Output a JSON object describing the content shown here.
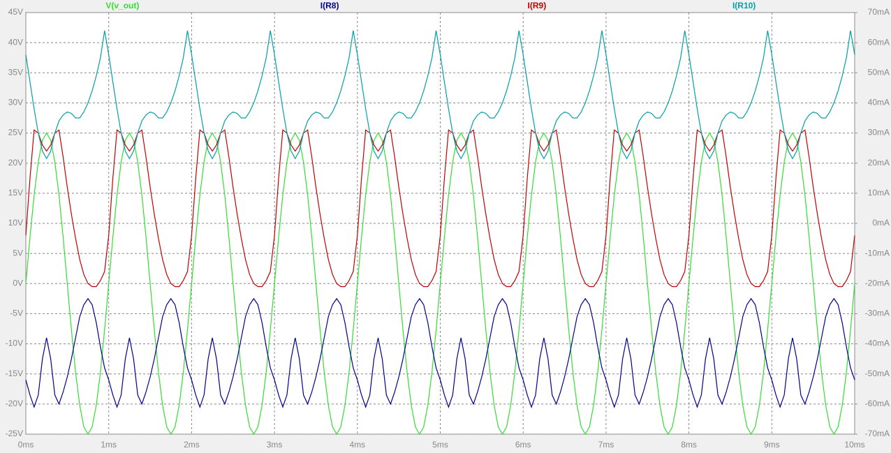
{
  "chart_data": {
    "type": "line",
    "x": [
      0,
      0.05,
      0.1,
      0.15,
      0.2,
      0.25,
      0.3,
      0.35,
      0.4,
      0.45,
      0.5,
      0.55,
      0.6,
      0.65,
      0.7,
      0.75,
      0.8,
      0.85,
      0.9,
      0.95,
      1,
      1.05,
      1.1,
      1.15,
      1.2,
      1.25,
      1.3,
      1.35,
      1.4,
      1.45,
      1.5,
      1.55,
      1.6,
      1.65,
      1.7,
      1.75,
      1.8,
      1.85,
      1.9,
      1.95,
      2,
      2.05,
      2.1,
      2.15,
      2.2,
      2.25,
      2.3,
      2.35,
      2.4,
      2.45,
      2.5,
      2.55,
      2.6,
      2.65,
      2.7,
      2.75,
      2.8,
      2.85,
      2.9,
      2.95,
      3,
      3.05,
      3.1,
      3.15,
      3.2,
      3.25,
      3.3,
      3.35,
      3.4,
      3.45,
      3.5,
      3.55,
      3.6,
      3.65,
      3.7,
      3.75,
      3.8,
      3.85,
      3.9,
      3.95,
      4,
      4.05,
      4.1,
      4.15,
      4.2,
      4.25,
      4.3,
      4.35,
      4.4,
      4.45,
      4.5,
      4.55,
      4.6,
      4.65,
      4.7,
      4.75,
      4.8,
      4.85,
      4.9,
      4.95,
      5,
      5.05,
      5.1,
      5.15,
      5.2,
      5.25,
      5.3,
      5.35,
      5.4,
      5.45,
      5.5,
      5.55,
      5.6,
      5.65,
      5.7,
      5.75,
      5.8,
      5.85,
      5.9,
      5.95,
      6,
      6.05,
      6.1,
      6.15,
      6.2,
      6.25,
      6.3,
      6.35,
      6.4,
      6.45,
      6.5,
      6.55,
      6.6,
      6.65,
      6.7,
      6.75,
      6.8,
      6.85,
      6.9,
      6.95,
      7,
      7.05,
      7.1,
      7.15,
      7.2,
      7.25,
      7.3,
      7.35,
      7.4,
      7.45,
      7.5,
      7.55,
      7.6,
      7.65,
      7.7,
      7.75,
      7.8,
      7.85,
      7.9,
      7.95,
      8,
      8.05,
      8.1,
      8.15,
      8.2,
      8.25,
      8.3,
      8.35,
      8.4,
      8.45,
      8.5,
      8.55,
      8.6,
      8.65,
      8.7,
      8.75,
      8.8,
      8.85,
      8.9,
      8.95,
      9,
      9.05,
      9.1,
      9.15,
      9.2,
      9.25,
      9.3,
      9.35,
      9.4,
      9.45,
      9.5,
      9.55,
      9.6,
      9.65,
      9.7,
      9.75,
      9.8,
      9.85,
      9.9,
      9.95,
      10
    ],
    "series": [
      {
        "name": "V(v_out)",
        "color": "#33dd33",
        "values": [
          0,
          7.7,
          14.7,
          20.2,
          23.8,
          25,
          23.8,
          20.2,
          14.7,
          7.7,
          0,
          -7.7,
          -14.7,
          -20.2,
          -23.8,
          -25,
          -23.8,
          -20.2,
          -14.7,
          -7.7,
          0,
          7.7,
          14.7,
          20.2,
          23.8,
          25,
          23.8,
          20.2,
          14.7,
          7.7,
          0,
          -7.7,
          -14.7,
          -20.2,
          -23.8,
          -25,
          -23.8,
          -20.2,
          -14.7,
          -7.7,
          0,
          7.7,
          14.7,
          20.2,
          23.8,
          25,
          23.8,
          20.2,
          14.7,
          7.7,
          0,
          -7.7,
          -14.7,
          -20.2,
          -23.8,
          -25,
          -23.8,
          -20.2,
          -14.7,
          -7.7,
          0,
          7.7,
          14.7,
          20.2,
          23.8,
          25,
          23.8,
          20.2,
          14.7,
          7.7,
          0,
          -7.7,
          -14.7,
          -20.2,
          -23.8,
          -25,
          -23.8,
          -20.2,
          -14.7,
          -7.7,
          0,
          7.7,
          14.7,
          20.2,
          23.8,
          25,
          23.8,
          20.2,
          14.7,
          7.7,
          0,
          -7.7,
          -14.7,
          -20.2,
          -23.8,
          -25,
          -23.8,
          -20.2,
          -14.7,
          -7.7,
          0,
          7.7,
          14.7,
          20.2,
          23.8,
          25,
          23.8,
          20.2,
          14.7,
          7.7,
          0,
          -7.7,
          -14.7,
          -20.2,
          -23.8,
          -25,
          -23.8,
          -20.2,
          -14.7,
          -7.7,
          0,
          7.7,
          14.7,
          20.2,
          23.8,
          25,
          23.8,
          20.2,
          14.7,
          7.7,
          0,
          -7.7,
          -14.7,
          -20.2,
          -23.8,
          -25,
          -23.8,
          -20.2,
          -14.7,
          -7.7,
          0,
          7.7,
          14.7,
          20.2,
          23.8,
          25,
          23.8,
          20.2,
          14.7,
          7.7,
          0,
          -7.7,
          -14.7,
          -20.2,
          -23.8,
          -25,
          -23.8,
          -20.2,
          -14.7,
          -7.7,
          0,
          7.7,
          14.7,
          20.2,
          23.8,
          25,
          23.8,
          20.2,
          14.7,
          7.7,
          0,
          -7.7,
          -14.7,
          -20.2,
          -23.8,
          -25,
          -23.8,
          -20.2,
          -14.7,
          -7.7,
          0,
          7.7,
          14.7,
          20.2,
          23.8,
          25,
          23.8,
          20.2,
          14.7,
          7.7,
          0,
          -7.7,
          -14.7,
          -20.2,
          -23.8,
          -25,
          -23.8,
          -20.2,
          -14.7,
          -7.7,
          0
        ]
      },
      {
        "name": "I(R8)",
        "color": "#000090",
        "axis": "y2",
        "values": [
          -52,
          -57,
          -61,
          -57,
          -45,
          -38,
          -45,
          -57,
          -60,
          -56,
          -51,
          -45,
          -38,
          -31,
          -27,
          -25,
          -27,
          -33,
          -41,
          -48,
          -52,
          -57,
          -61,
          -57,
          -45,
          -38,
          -45,
          -57,
          -60,
          -56,
          -51,
          -45,
          -38,
          -31,
          -27,
          -25,
          -27,
          -33,
          -41,
          -48,
          -52,
          -57,
          -61,
          -57,
          -45,
          -38,
          -45,
          -57,
          -60,
          -56,
          -51,
          -45,
          -38,
          -31,
          -27,
          -25,
          -27,
          -33,
          -41,
          -48,
          -52,
          -57,
          -61,
          -57,
          -45,
          -38,
          -45,
          -57,
          -60,
          -56,
          -51,
          -45,
          -38,
          -31,
          -27,
          -25,
          -27,
          -33,
          -41,
          -48,
          -52,
          -57,
          -61,
          -57,
          -45,
          -38,
          -45,
          -57,
          -60,
          -56,
          -51,
          -45,
          -38,
          -31,
          -27,
          -25,
          -27,
          -33,
          -41,
          -48,
          -52,
          -57,
          -61,
          -57,
          -45,
          -38,
          -45,
          -57,
          -60,
          -56,
          -51,
          -45,
          -38,
          -31,
          -27,
          -25,
          -27,
          -33,
          -41,
          -48,
          -52,
          -57,
          -61,
          -57,
          -45,
          -38,
          -45,
          -57,
          -60,
          -56,
          -51,
          -45,
          -38,
          -31,
          -27,
          -25,
          -27,
          -33,
          -41,
          -48,
          -52,
          -57,
          -61,
          -57,
          -45,
          -38,
          -45,
          -57,
          -60,
          -56,
          -51,
          -45,
          -38,
          -31,
          -27,
          -25,
          -27,
          -33,
          -41,
          -48,
          -52,
          -57,
          -61,
          -57,
          -45,
          -38,
          -45,
          -57,
          -60,
          -56,
          -51,
          -45,
          -38,
          -31,
          -27,
          -25,
          -27,
          -33,
          -41,
          -48,
          -52,
          -57,
          -61,
          -57,
          -45,
          -38,
          -45,
          -57,
          -60,
          -56,
          -51,
          -45,
          -38,
          -31,
          -27,
          -25,
          -27,
          -33,
          -41,
          -48,
          -52
        ]
      },
      {
        "name": "I(R9)",
        "color": "#c00000",
        "axis": "y2",
        "values": [
          -4,
          15,
          31,
          30,
          26,
          24,
          26,
          30,
          31,
          22,
          12,
          3,
          -5,
          -12,
          -17,
          -20,
          -21,
          -21,
          -19,
          -16,
          -4,
          15,
          31,
          30,
          26,
          24,
          26,
          30,
          31,
          22,
          12,
          3,
          -5,
          -12,
          -17,
          -20,
          -21,
          -21,
          -19,
          -16,
          -4,
          15,
          31,
          30,
          26,
          24,
          26,
          30,
          31,
          22,
          12,
          3,
          -5,
          -12,
          -17,
          -20,
          -21,
          -21,
          -19,
          -16,
          -4,
          15,
          31,
          30,
          26,
          24,
          26,
          30,
          31,
          22,
          12,
          3,
          -5,
          -12,
          -17,
          -20,
          -21,
          -21,
          -19,
          -16,
          -4,
          15,
          31,
          30,
          26,
          24,
          26,
          30,
          31,
          22,
          12,
          3,
          -5,
          -12,
          -17,
          -20,
          -21,
          -21,
          -19,
          -16,
          -4,
          15,
          31,
          30,
          26,
          24,
          26,
          30,
          31,
          22,
          12,
          3,
          -5,
          -12,
          -17,
          -20,
          -21,
          -21,
          -19,
          -16,
          -4,
          15,
          31,
          30,
          26,
          24,
          26,
          30,
          31,
          22,
          12,
          3,
          -5,
          -12,
          -17,
          -20,
          -21,
          -21,
          -19,
          -16,
          -4,
          15,
          31,
          30,
          26,
          24,
          26,
          30,
          31,
          22,
          12,
          3,
          -5,
          -12,
          -17,
          -20,
          -21,
          -21,
          -19,
          -16,
          -4,
          15,
          31,
          30,
          26,
          24,
          26,
          30,
          31,
          22,
          12,
          3,
          -5,
          -12,
          -17,
          -20,
          -21,
          -21,
          -19,
          -16,
          -4,
          15,
          31,
          30,
          26,
          24,
          26,
          30,
          31,
          22,
          12,
          3,
          -5,
          -12,
          -17,
          -20,
          -21,
          -21,
          -19,
          -16,
          -4
        ]
      },
      {
        "name": "I(R10)",
        "color": "#00a0a8",
        "axis": "y2",
        "values": [
          56,
          47,
          38,
          30,
          24,
          21.5,
          24,
          30,
          34,
          36,
          37,
          36.5,
          35,
          35,
          37,
          40,
          44,
          49,
          55,
          64,
          56,
          47,
          38,
          30,
          24,
          21.5,
          24,
          30,
          34,
          36,
          37,
          36.5,
          35,
          35,
          37,
          40,
          44,
          49,
          55,
          64,
          56,
          47,
          38,
          30,
          24,
          21.5,
          24,
          30,
          34,
          36,
          37,
          36.5,
          35,
          35,
          37,
          40,
          44,
          49,
          55,
          64,
          56,
          47,
          38,
          30,
          24,
          21.5,
          24,
          30,
          34,
          36,
          37,
          36.5,
          35,
          35,
          37,
          40,
          44,
          49,
          55,
          64,
          56,
          47,
          38,
          30,
          24,
          21.5,
          24,
          30,
          34,
          36,
          37,
          36.5,
          35,
          35,
          37,
          40,
          44,
          49,
          55,
          64,
          56,
          47,
          38,
          30,
          24,
          21.5,
          24,
          30,
          34,
          36,
          37,
          36.5,
          35,
          35,
          37,
          40,
          44,
          49,
          55,
          64,
          56,
          47,
          38,
          30,
          24,
          21.5,
          24,
          30,
          34,
          36,
          37,
          36.5,
          35,
          35,
          37,
          40,
          44,
          49,
          55,
          64,
          56,
          47,
          38,
          30,
          24,
          21.5,
          24,
          30,
          34,
          36,
          37,
          36.5,
          35,
          35,
          37,
          40,
          44,
          49,
          55,
          64,
          56,
          47,
          38,
          30,
          24,
          21.5,
          24,
          30,
          34,
          36,
          37,
          36.5,
          35,
          35,
          37,
          40,
          44,
          49,
          55,
          64,
          56,
          47,
          38,
          30,
          24,
          21.5,
          24,
          30,
          34,
          36,
          37,
          36.5,
          35,
          35,
          37,
          40,
          44,
          49,
          55,
          64,
          56
        ]
      }
    ],
    "xlim": [
      0,
      10
    ],
    "xticks": [
      {
        "value": 0,
        "label": "0ms"
      },
      {
        "value": 1,
        "label": "1ms"
      },
      {
        "value": 2,
        "label": "2ms"
      },
      {
        "value": 3,
        "label": "3ms"
      },
      {
        "value": 4,
        "label": "4ms"
      },
      {
        "value": 5,
        "label": "5ms"
      },
      {
        "value": 6,
        "label": "6ms"
      },
      {
        "value": 7,
        "label": "7ms"
      },
      {
        "value": 8,
        "label": "8ms"
      },
      {
        "value": 9,
        "label": "9ms"
      },
      {
        "value": 10,
        "label": "10ms"
      }
    ],
    "ylim": [
      -25,
      45
    ],
    "yticks": [
      {
        "value": -25,
        "label": "-25V"
      },
      {
        "value": -20,
        "label": "-20V"
      },
      {
        "value": -15,
        "label": "-15V"
      },
      {
        "value": -10,
        "label": "-10V"
      },
      {
        "value": -5,
        "label": "-5V"
      },
      {
        "value": 0,
        "label": "0V"
      },
      {
        "value": 5,
        "label": "5V"
      },
      {
        "value": 10,
        "label": "10V"
      },
      {
        "value": 15,
        "label": "15V"
      },
      {
        "value": 20,
        "label": "20V"
      },
      {
        "value": 25,
        "label": "25V"
      },
      {
        "value": 30,
        "label": "30V"
      },
      {
        "value": 35,
        "label": "35V"
      },
      {
        "value": 40,
        "label": "40V"
      },
      {
        "value": 45,
        "label": "45V"
      }
    ],
    "y2lim": [
      -70,
      70
    ],
    "y2ticks": [
      {
        "value": -70,
        "label": "-70mA"
      },
      {
        "value": -60,
        "label": "-60mA"
      },
      {
        "value": -50,
        "label": "-50mA"
      },
      {
        "value": -40,
        "label": "-40mA"
      },
      {
        "value": -30,
        "label": "-30mA"
      },
      {
        "value": -20,
        "label": "-20mA"
      },
      {
        "value": -10,
        "label": "-10mA"
      },
      {
        "value": 0,
        "label": "0mA"
      },
      {
        "value": 10,
        "label": "10mA"
      },
      {
        "value": 20,
        "label": "20mA"
      },
      {
        "value": 30,
        "label": "30mA"
      },
      {
        "value": 40,
        "label": "40mA"
      },
      {
        "value": 50,
        "label": "50mA"
      },
      {
        "value": 60,
        "label": "60mA"
      },
      {
        "value": 70,
        "label": "70mA"
      }
    ],
    "grid": true
  }
}
